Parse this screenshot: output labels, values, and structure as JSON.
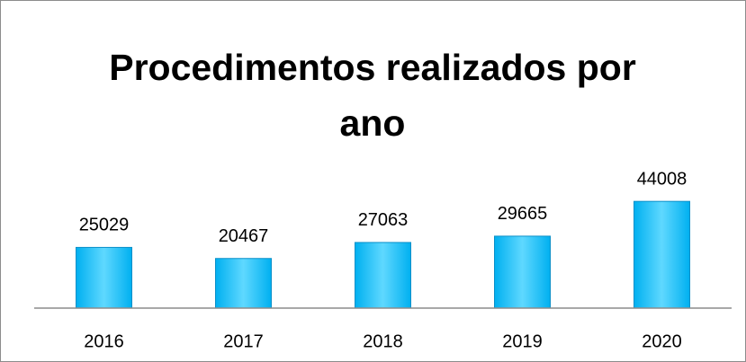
{
  "chart_data": {
    "type": "bar",
    "title": "Procedimentos realizados por ano",
    "categories": [
      "2016",
      "2017",
      "2018",
      "2019",
      "2020"
    ],
    "values": [
      25029,
      20467,
      27063,
      29665,
      44008
    ],
    "color": "#00b0f0",
    "ylim": [
      0,
      50000
    ]
  }
}
